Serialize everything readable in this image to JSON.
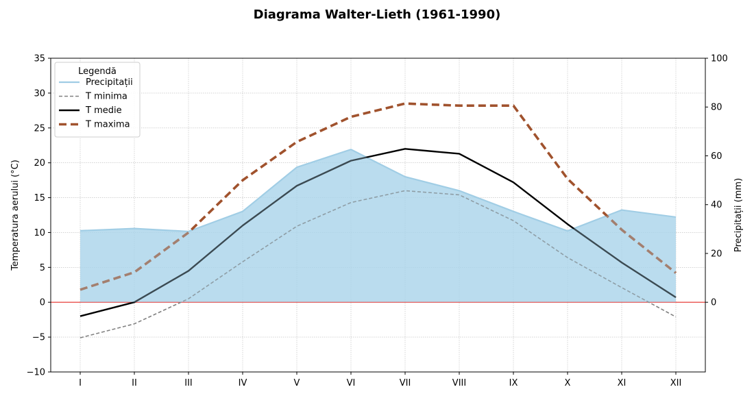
{
  "chart_data": {
    "type": "line",
    "title": "Diagrama Walter-Lieth (1961-1990)",
    "categories": [
      "I",
      "II",
      "III",
      "IV",
      "V",
      "VI",
      "VII",
      "VIII",
      "IX",
      "X",
      "XI",
      "XII"
    ],
    "y_left": {
      "label": "Temperatura aerului (°C)",
      "range": [
        -10,
        35
      ],
      "ticks": [
        -10,
        -5,
        0,
        5,
        10,
        15,
        20,
        25,
        30,
        35
      ]
    },
    "y_right": {
      "label": "Precipitații (mm)",
      "range": [
        -28.57,
        100
      ],
      "ticks": [
        0,
        20,
        40,
        60,
        80,
        100
      ]
    },
    "grid": true,
    "zero_line_color": "#e8413c",
    "legend": {
      "title": "Legendă",
      "placement": "top-left"
    },
    "series": [
      {
        "name": "Precipitații",
        "axis": "right",
        "style": "area",
        "color": "#9fcce4",
        "fill_color": "#a9d4ea",
        "values": [
          29.3,
          30.2,
          29.0,
          37.2,
          55.3,
          62.6,
          51.4,
          45.7,
          37.2,
          29.2,
          37.8,
          34.9
        ]
      },
      {
        "name": "T minima",
        "axis": "left",
        "style": "dashed",
        "color": "#808080",
        "values": [
          -5.1,
          -3.1,
          0.5,
          5.8,
          10.9,
          14.3,
          16.0,
          15.4,
          11.7,
          6.4,
          2.1,
          -2.1
        ]
      },
      {
        "name": "T medie",
        "axis": "left",
        "style": "solid",
        "color": "#000000",
        "values": [
          -2.0,
          0.0,
          4.5,
          11.0,
          16.7,
          20.3,
          22.0,
          21.3,
          17.2,
          11.2,
          5.7,
          0.7
        ]
      },
      {
        "name": "T maxima",
        "axis": "left",
        "style": "thick-dashed",
        "color": "#a0522d",
        "values": [
          1.8,
          4.3,
          10.0,
          17.5,
          23.0,
          26.6,
          28.5,
          28.2,
          28.2,
          17.7,
          10.4,
          4.2
        ]
      }
    ]
  }
}
